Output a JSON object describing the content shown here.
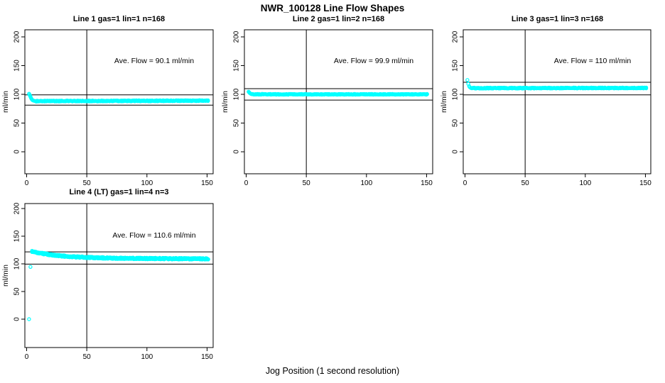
{
  "figure": {
    "title": "NWR_100128  Line Flow Shapes",
    "xlabel": "Jog Position (1 second resolution)",
    "background": "#ffffff",
    "point_color": "#00ffff",
    "axis_color": "#000000"
  },
  "chart_data": [
    {
      "type": "scatter",
      "title": "Line 1 gas=1 lin=1 n=168",
      "annotation": "Ave. Flow =  90.1  ml/min",
      "ave_flow": 90.1,
      "ylabel": "ml/min",
      "x_ticks": [
        0,
        50,
        100,
        150
      ],
      "y_ticks": [
        0,
        50,
        100,
        150,
        200
      ],
      "xlim": [
        0,
        155
      ],
      "ylim": [
        0,
        210
      ],
      "vline_x": 50,
      "ref_lines": [
        99.1,
        81.1
      ],
      "transient": [
        [
          2,
          101
        ],
        [
          2.4,
          99.5
        ],
        [
          2.8,
          97.8
        ],
        [
          3.2,
          95.8
        ],
        [
          3.6,
          93.8
        ],
        [
          4,
          92.2
        ],
        [
          4.5,
          90.8
        ],
        [
          5,
          89.8
        ],
        [
          5.6,
          89.1
        ],
        [
          6.3,
          88.6
        ],
        [
          7.2,
          88.3
        ]
      ],
      "steady": {
        "x_start": 8,
        "x_end": 151,
        "value": 88.2,
        "drift": 0.8,
        "noise": 0.8,
        "step": 0.7,
        "layers": 2
      },
      "outliers": []
    },
    {
      "type": "scatter",
      "title": "Line 2 gas=1 lin=2 n=168",
      "annotation": "Ave. Flow =  99.9  ml/min",
      "ave_flow": 99.9,
      "ylabel": "ml/min",
      "x_ticks": [
        0,
        50,
        100,
        150
      ],
      "y_ticks": [
        0,
        50,
        100,
        150,
        200
      ],
      "xlim": [
        0,
        155
      ],
      "ylim": [
        0,
        210
      ],
      "vline_x": 50,
      "ref_lines": [
        109.9,
        89.9
      ],
      "transient": [
        [
          2,
          104.6
        ],
        [
          2.4,
          103.6
        ],
        [
          2.8,
          102.6
        ],
        [
          3.2,
          101.8
        ],
        [
          3.7,
          101.1
        ],
        [
          4.2,
          100.6
        ],
        [
          4.8,
          100.2
        ]
      ],
      "steady": {
        "x_start": 5.5,
        "x_end": 151,
        "value": 100,
        "drift": 0,
        "noise": 0.6,
        "step": 0.7,
        "layers": 2
      },
      "outliers": []
    },
    {
      "type": "scatter",
      "title": "Line 3 gas=1 lin=3 n=168",
      "annotation": "Ave. Flow =  110  ml/min",
      "ave_flow": 110,
      "ylabel": "ml/min",
      "x_ticks": [
        0,
        50,
        100,
        150
      ],
      "y_ticks": [
        0,
        50,
        100,
        150,
        200
      ],
      "xlim": [
        0,
        155
      ],
      "ylim": [
        0,
        210
      ],
      "vline_x": 50,
      "ref_lines": [
        121,
        99
      ],
      "transient": [
        [
          2,
          125
        ],
        [
          2.7,
          118.3
        ],
        [
          3.4,
          114.2
        ],
        [
          4.1,
          112.2
        ]
      ],
      "steady": {
        "x_start": 5,
        "x_end": 151,
        "value": 110.8,
        "drift": 0.3,
        "noise": 0.75,
        "step": 0.7,
        "layers": 2
      },
      "outliers": []
    },
    {
      "type": "scatter",
      "title": "Line 4 (LT) gas=1 lin=4 n=3",
      "annotation": "Ave. Flow =  110.6  ml/min",
      "ave_flow": 110.6,
      "ylabel": "ml/min",
      "x_ticks": [
        0,
        50,
        100,
        150
      ],
      "y_ticks": [
        0,
        50,
        100,
        150,
        200
      ],
      "xlim": [
        0,
        155
      ],
      "ylim": [
        0,
        210
      ],
      "vline_x": 50,
      "ref_lines": [
        121.7,
        99.5
      ],
      "transient": [],
      "decay": {
        "x_start": 4.5,
        "x_end": 151,
        "start_value": 122.5,
        "steady_value": 110.2,
        "tau": 24,
        "drift": -1.2,
        "noise": 1.4,
        "step": 0.6,
        "layers": 3
      },
      "outliers": [
        [
          2,
          0
        ],
        [
          3.2,
          94.5
        ]
      ]
    }
  ]
}
